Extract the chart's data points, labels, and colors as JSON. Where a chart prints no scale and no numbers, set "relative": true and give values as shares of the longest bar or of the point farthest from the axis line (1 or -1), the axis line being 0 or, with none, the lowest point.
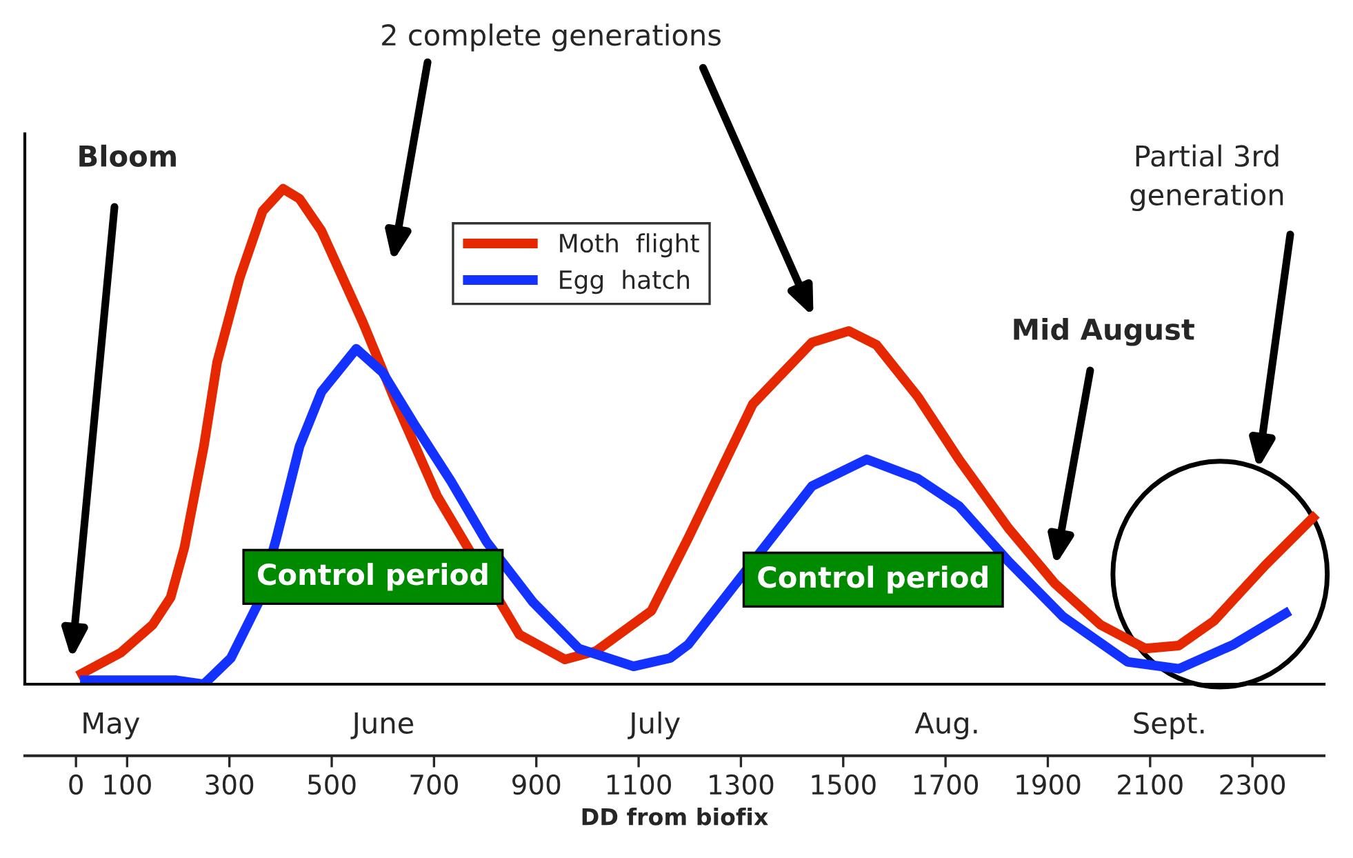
{
  "chart_data": {
    "type": "line",
    "relative": true,
    "xlabel": "DD from biofix",
    "xlim": [
      -100,
      2440
    ],
    "xticks": [
      0,
      100,
      300,
      500,
      700,
      900,
      1100,
      1300,
      1500,
      1700,
      1900,
      2100,
      2300
    ],
    "series": [
      {
        "name": "Moth  flight",
        "color": "#e62800",
        "x": [
          3,
          88,
          150,
          185,
          212,
          250,
          276,
          320,
          365,
          405,
          437,
          480,
          561,
          625,
          706,
          786,
          867,
          956,
          1017,
          1125,
          1197,
          1323,
          1439,
          1511,
          1565,
          1646,
          1726,
          1823,
          1914,
          2003,
          2091,
          2156,
          2225,
          2325,
          2425
        ],
        "values": [
          0.017,
          0.064,
          0.12,
          0.175,
          0.276,
          0.48,
          0.65,
          0.82,
          0.955,
          1.0,
          0.98,
          0.915,
          0.73,
          0.57,
          0.38,
          null,
          0.1,
          0.05,
          0.067,
          0.148,
          0.295,
          0.565,
          0.69,
          0.713,
          0.685,
          0.58,
          0.454,
          0.315,
          0.203,
          0.12,
          0.072,
          0.078,
          0.128,
          0.24,
          0.343
        ]
      },
      {
        "name": "Egg  hatch",
        "color": "#1432ff",
        "x": [
          8,
          196,
          250,
          303,
          357,
          392,
          437,
          480,
          548,
          599,
          660,
          733,
          803,
          894,
          983,
          1090,
          1162,
          1197,
          1323,
          1439,
          1546,
          1646,
          1726,
          1823,
          1930,
          2056,
          2156,
          2263,
          2373
        ],
        "values": [
          0.008,
          0.008,
          0.0,
          0.053,
          0.165,
          0.295,
          0.48,
          0.59,
          0.677,
          0.63,
          0.527,
          0.41,
          0.287,
          0.165,
          0.072,
          0.036,
          0.053,
          0.08,
          null,
          0.4,
          0.454,
          0.415,
          0.36,
          0.248,
          0.136,
          0.045,
          0.031,
          0.08,
          0.148
        ]
      }
    ],
    "legend": "top",
    "marker": "none",
    "line_style": "solid",
    "annotations": [
      "2 complete generations",
      "Bloom",
      "Mid August",
      "Partial 3rd\ngeneration",
      "Control period",
      "Control period",
      "May",
      "June",
      "July",
      "Aug.",
      "Sept."
    ]
  }
}
